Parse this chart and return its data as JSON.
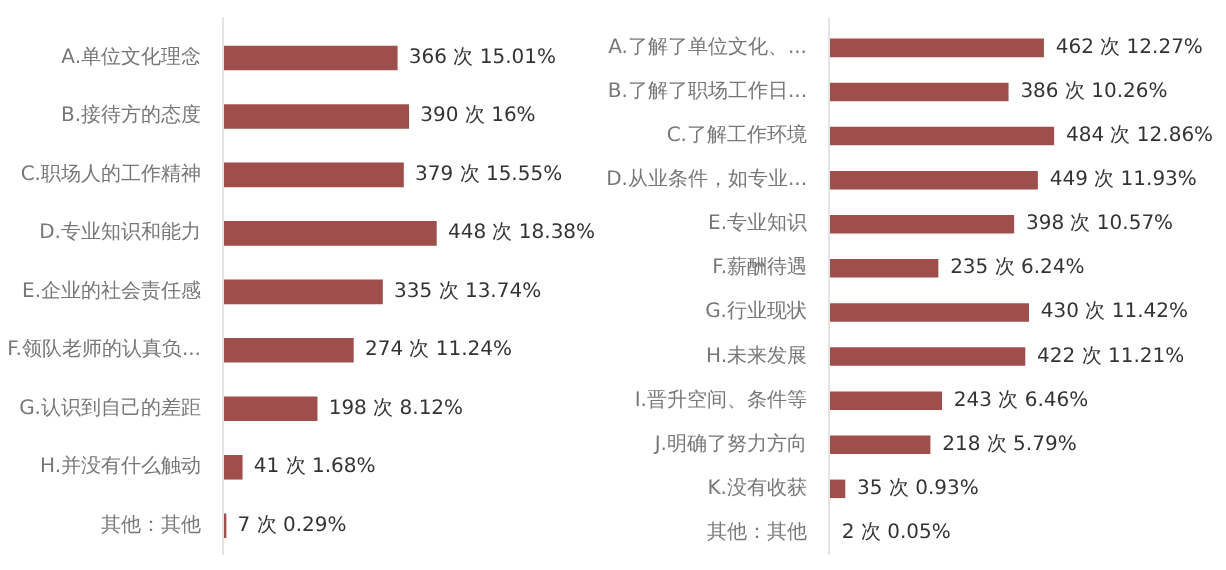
{
  "chart_data": [
    {
      "type": "bar",
      "orientation": "horizontal",
      "categories": [
        "A.单位文化理念",
        "B.接待方的态度",
        "C.职场人的工作精神",
        "D.专业知识和能力",
        "E.企业的社会责任感",
        "F.领队老师的认真负...",
        "G.认识到自己的差距",
        "H.并没有什么触动",
        "其他：其他"
      ],
      "values": [
        366,
        390,
        379,
        448,
        335,
        274,
        198,
        41,
        7
      ],
      "value_labels": [
        "366 次 15.01%",
        "390 次 16%",
        "379 次 15.55%",
        "448 次 18.38%",
        "335 次 13.74%",
        "274 次 11.24%",
        "198 次 8.12%",
        "41 次 1.68%",
        "7 次 0.29%"
      ],
      "color": "#9e4f4b",
      "tick_labels": "y"
    },
    {
      "type": "bar",
      "orientation": "horizontal",
      "categories": [
        "A.了解了单位文化、...",
        "B.了解了职场工作日...",
        "C.了解工作环境",
        "D.从业条件，如专业...",
        "E.专业知识",
        "F.薪酬待遇",
        "G.行业现状",
        "H.未来发展",
        "I.晋升空间、条件等",
        "J.明确了努力方向",
        "K.没有收获",
        "其他：其他"
      ],
      "values": [
        462,
        386,
        484,
        449,
        398,
        235,
        430,
        422,
        243,
        218,
        35,
        2
      ],
      "value_labels": [
        "462 次 12.27%",
        "386 次 10.26%",
        "484 次 12.86%",
        "449 次 11.93%",
        "398 次 10.57%",
        "235 次 6.24%",
        "430 次 11.42%",
        "422 次 11.21%",
        "243 次 6.46%",
        "218 次 5.79%",
        "35 次 0.93%",
        "2 次 0.05%"
      ],
      "color": "#9e4f4b",
      "tick_labels": "y"
    }
  ]
}
